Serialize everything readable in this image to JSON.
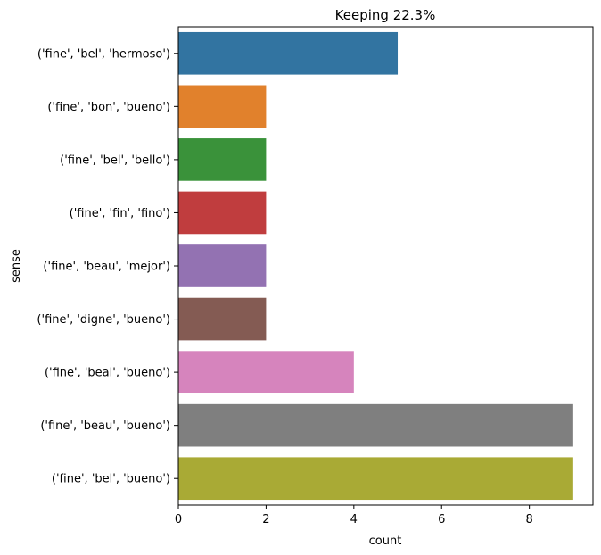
{
  "chart_data": {
    "type": "bar",
    "orientation": "horizontal",
    "title": "Keeping 22.3%",
    "xlabel": "count",
    "ylabel": "sense",
    "xlim": [
      0,
      9.45
    ],
    "xticks": [
      0,
      2,
      4,
      6,
      8
    ],
    "grid": false,
    "legend": "none",
    "categories": [
      "('fine', 'bel', 'hermoso')",
      "('fine', 'bon', 'bueno')",
      "('fine', 'bel', 'bello')",
      "('fine', 'fin', 'fino')",
      "('fine', 'beau', 'mejor')",
      "('fine', 'digne', 'bueno')",
      "('fine', 'beal', 'bueno')",
      "('fine', 'beau', 'bueno')",
      "('fine', 'bel', 'bueno')"
    ],
    "values": [
      5,
      2,
      2,
      2,
      2,
      2,
      4,
      9,
      9
    ],
    "colors": [
      "#3274a1",
      "#e1812c",
      "#3a923a",
      "#c03d3e",
      "#9372b2",
      "#845b53",
      "#d684bd",
      "#7f7f7f",
      "#a9aa35"
    ]
  }
}
